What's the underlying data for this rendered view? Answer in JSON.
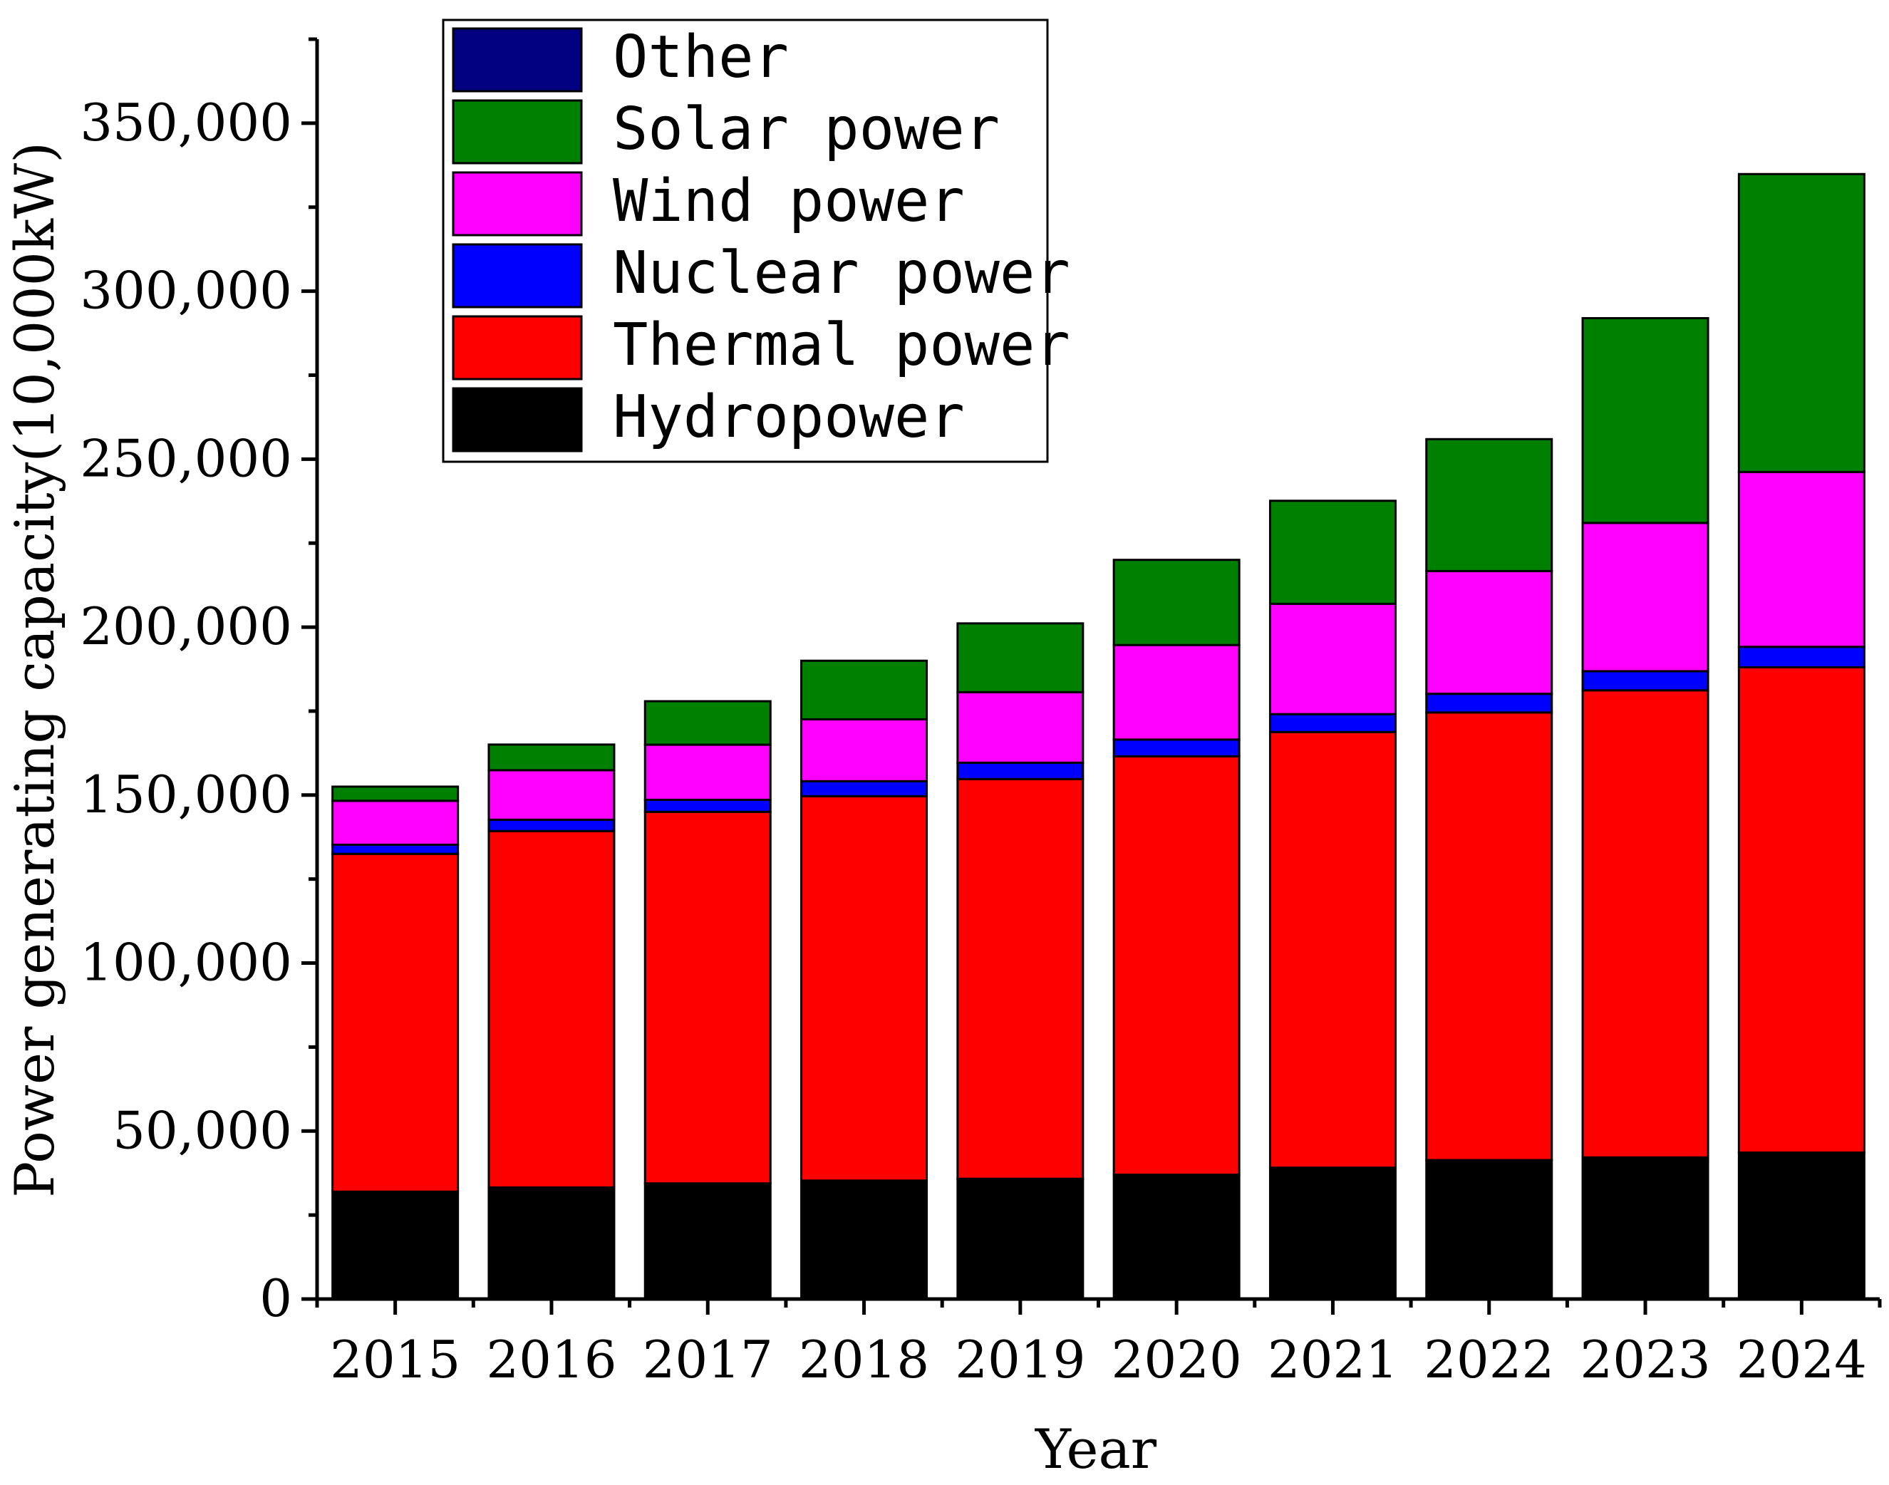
{
  "chart_data": {
    "type": "bar",
    "stacked": true,
    "xlabel": "Year",
    "ylabel": "Power generating capacity(10,000kW)",
    "ylim": [
      0,
      375000
    ],
    "y_ticks": [
      0,
      50000,
      100000,
      150000,
      200000,
      250000,
      300000,
      350000
    ],
    "y_tick_labels": [
      "0",
      "50,000",
      "100,000",
      "150,000",
      "200,000",
      "250,000",
      "300,000",
      "350,000"
    ],
    "categories": [
      "2015",
      "2016",
      "2017",
      "2018",
      "2019",
      "2020",
      "2021",
      "2022",
      "2023",
      "2024"
    ],
    "legend_position": "top-left",
    "grid": false,
    "series": [
      {
        "name": "Hydropower",
        "color": "#000000",
        "values": [
          31954,
          33207,
          34411,
          35259,
          35804,
          37016,
          39092,
          41350,
          42154,
          43595
        ]
      },
      {
        "name": "Thermal power",
        "color": "#ff0000",
        "values": [
          100554,
          106094,
          110604,
          114408,
          118957,
          124517,
          129678,
          133239,
          139032,
          144445
        ]
      },
      {
        "name": "Nuclear power",
        "color": "#0000ff",
        "values": [
          2717,
          3364,
          3582,
          4466,
          4874,
          4989,
          5326,
          5553,
          5691,
          6083
        ]
      },
      {
        "name": "Wind power",
        "color": "#ff00ff",
        "values": [
          13075,
          14747,
          16400,
          18427,
          21005,
          28153,
          32848,
          36544,
          44134,
          52068
        ]
      },
      {
        "name": "Solar power",
        "color": "#008000",
        "values": [
          4218,
          7631,
          12942,
          17433,
          20468,
          25343,
          30656,
          39261,
          60949,
          88666
        ]
      },
      {
        "name": "Other",
        "color": "#000080",
        "values": [
          0,
          0,
          0,
          0,
          0,
          0,
          0,
          0,
          0,
          0
        ]
      }
    ]
  }
}
